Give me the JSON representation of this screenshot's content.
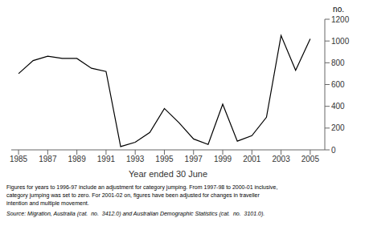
{
  "chart_data": {
    "type": "line",
    "x_label": "Year ended 30 June",
    "y_label": "no.",
    "x": [
      1985,
      1986,
      1987,
      1988,
      1989,
      1990,
      1991,
      1992,
      1993,
      1994,
      1995,
      1996,
      1997,
      1998,
      1999,
      2000,
      2001,
      2002,
      2003,
      2004,
      2005
    ],
    "values": [
      700,
      820,
      860,
      840,
      840,
      750,
      720,
      30,
      70,
      160,
      380,
      250,
      100,
      50,
      420,
      80,
      130,
      300,
      1050,
      730,
      1020
    ],
    "color": "#000000",
    "xlim": [
      1984.5,
      2006.0
    ],
    "xticks": [
      1985,
      1987,
      1989,
      1991,
      1993,
      1995,
      1997,
      1999,
      2001,
      2003,
      2005
    ],
    "ylim": [
      0,
      1200
    ],
    "yticks": [
      0,
      200,
      400,
      600,
      800,
      1000,
      1200
    ],
    "grid": false,
    "annotations": [
      "Figures for years to 1996-97 include an adjustment for category jumping. From 1997-98 to 2000-01 inclusive,",
      "category jumping was set to zero. For 2001-02 on, figures have been adjusted for changes in traveller",
      "intention and multiple movement.",
      "Source: Migration, Australia (cat.  no.  3412.0) and Australian Demographic Statistics (cat.  no.  3101.0)."
    ]
  }
}
